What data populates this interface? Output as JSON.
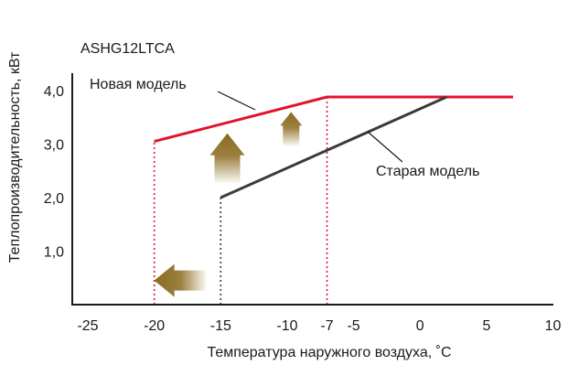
{
  "chart_data": {
    "type": "line",
    "title": "ASHG12LTCA",
    "xlabel": "Температура наружного воздуха, ˚C",
    "ylabel": "Теплопроизводительность, кВт",
    "xlim": [
      -25,
      10
    ],
    "ylim": [
      0,
      4.5
    ],
    "x_ticks": [
      {
        "value": -25,
        "label": "-25"
      },
      {
        "value": -20,
        "label": "-20"
      },
      {
        "value": -15,
        "label": "-15"
      },
      {
        "value": -10,
        "label": "-10"
      },
      {
        "value": -7,
        "label": "-7"
      },
      {
        "value": -5,
        "label": "-5"
      },
      {
        "value": 0,
        "label": "0"
      },
      {
        "value": 5,
        "label": "5"
      },
      {
        "value": 10,
        "label": "10"
      }
    ],
    "y_ticks": [
      {
        "value": 1.0,
        "label": "1,0"
      },
      {
        "value": 2.0,
        "label": "2,0"
      },
      {
        "value": 3.0,
        "label": "3,0"
      },
      {
        "value": 4.0,
        "label": "4,0"
      }
    ],
    "series": [
      {
        "name": "Новая модель",
        "color": "#e0142c",
        "points": [
          [
            -20,
            3.05
          ],
          [
            -7,
            3.88
          ],
          [
            7,
            3.88
          ]
        ]
      },
      {
        "name": "Старая модель",
        "color": "#3a3a3a",
        "points": [
          [
            -15,
            2.0
          ],
          [
            2,
            3.88
          ]
        ]
      }
    ],
    "guide_lines": [
      {
        "x": -20,
        "color": "#e0142c",
        "y_top": 3.05
      },
      {
        "x": -15,
        "color": "#3a3a3a",
        "y_top": 2.0
      },
      {
        "x": -7,
        "color": "#e0142c",
        "y_top": 3.88
      }
    ],
    "annotations": {
      "arrow_color": "#8a6a1e",
      "arrows": [
        {
          "direction": "up",
          "x": -14.5,
          "y_from": 2.25,
          "y_to": 3.2
        },
        {
          "direction": "up",
          "x": -9.7,
          "y_from": 2.95,
          "y_to": 3.6
        },
        {
          "direction": "left",
          "y": 0.45,
          "x_from": -16,
          "x_to": -20
        }
      ]
    },
    "grid": false,
    "legend": "inline labels"
  }
}
